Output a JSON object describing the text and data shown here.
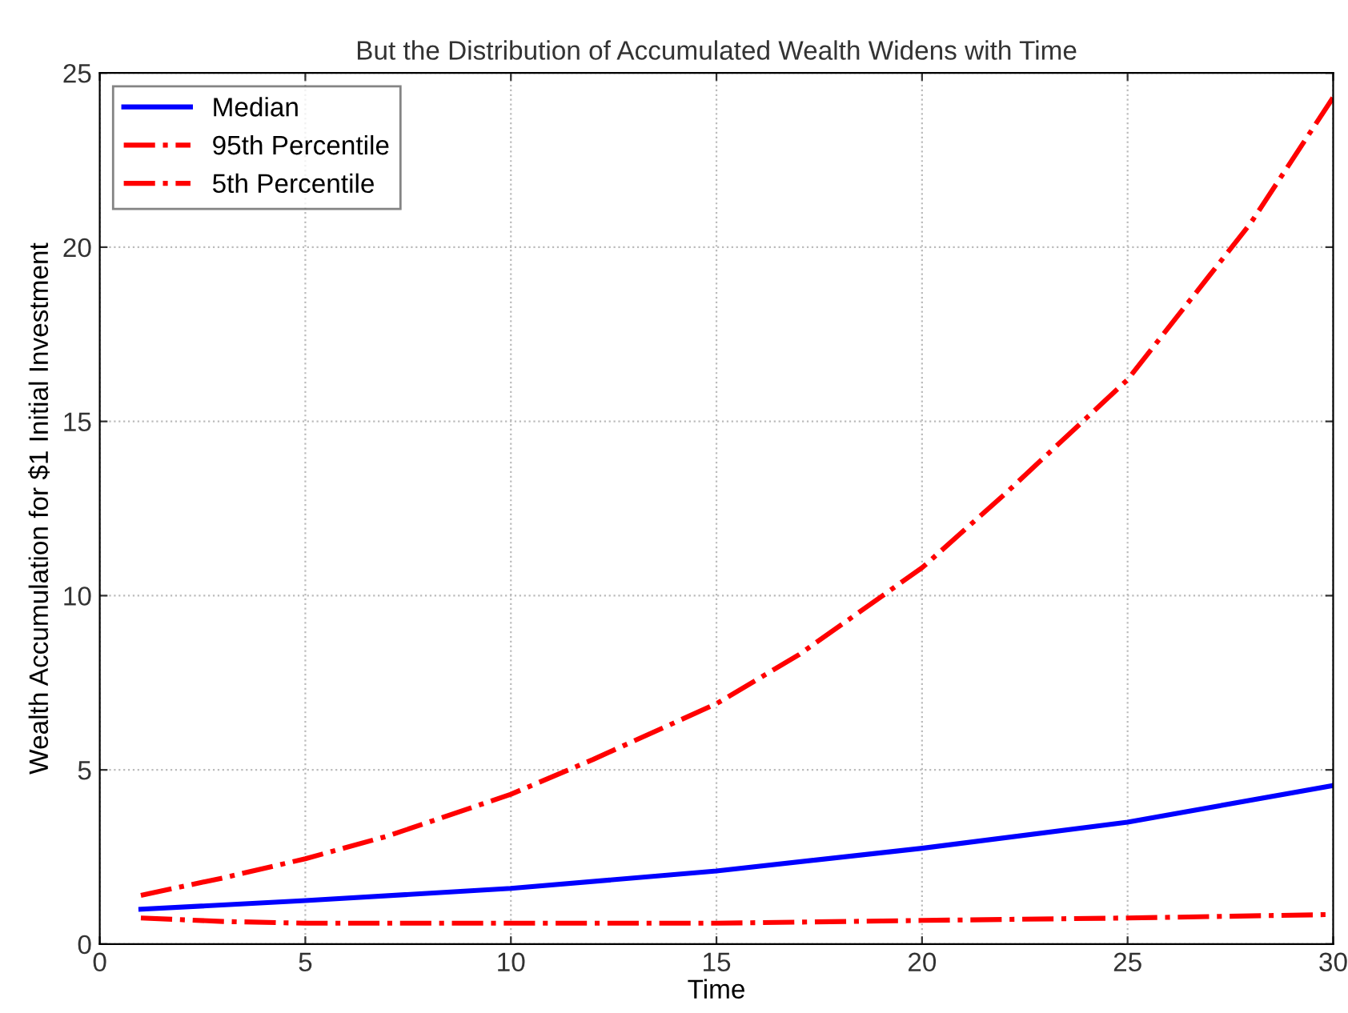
{
  "chart_data": {
    "type": "line",
    "title": "But the Distribution of Accumulated Wealth Widens with Time",
    "xlabel": "Time",
    "ylabel": "Wealth Accumulation for $1 Initial Investment",
    "xlim": [
      0,
      30
    ],
    "xticks": [
      0,
      5,
      10,
      15,
      20,
      25,
      30
    ],
    "ylim": [
      0,
      25
    ],
    "yticks": [
      0,
      5,
      10,
      15,
      20,
      25
    ],
    "grid": true,
    "legend": "top left",
    "series": [
      {
        "name": "Median",
        "color": "#0000ff",
        "line_style": "solid",
        "x": [
          1,
          5,
          10,
          15,
          20,
          25,
          30
        ],
        "values": [
          1.0,
          1.25,
          1.6,
          2.1,
          2.75,
          3.5,
          4.55
        ]
      },
      {
        "name": "95th Percentile",
        "color": "#ff0000",
        "line_style": "dashdot",
        "x": [
          1,
          3,
          5,
          7,
          10,
          12,
          15,
          17,
          20,
          22,
          25,
          27,
          28,
          30
        ],
        "values": [
          1.4,
          1.9,
          2.45,
          3.1,
          4.3,
          5.3,
          6.9,
          8.3,
          10.8,
          12.9,
          16.2,
          19.2,
          20.7,
          24.3
        ]
      },
      {
        "name": "5th Percentile",
        "color": "#ff0000",
        "line_style": "dashdot",
        "x": [
          1,
          3,
          5,
          10,
          15,
          20,
          25,
          30
        ],
        "values": [
          0.75,
          0.65,
          0.6,
          0.6,
          0.6,
          0.68,
          0.75,
          0.85
        ]
      }
    ]
  }
}
